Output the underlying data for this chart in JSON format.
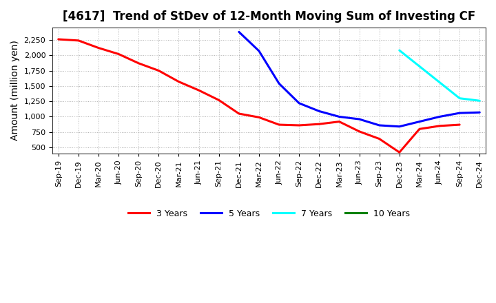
{
  "title": "[4617]  Trend of StDev of 12-Month Moving Sum of Investing CF",
  "ylabel": "Amount (million yen)",
  "background_color": "#ffffff",
  "plot_bg_color": "#ffffff",
  "grid_color": "#aaaaaa",
  "title_fontsize": 12,
  "axis_label_fontsize": 10,
  "tick_fontsize": 8,
  "x_tick_labels": [
    "Sep-19",
    "Dec-19",
    "Mar-20",
    "Jun-20",
    "Sep-20",
    "Dec-20",
    "Mar-21",
    "Jun-21",
    "Sep-21",
    "Dec-21",
    "Mar-22",
    "Jun-22",
    "Sep-22",
    "Dec-22",
    "Mar-23",
    "Jun-23",
    "Sep-23",
    "Dec-23",
    "Mar-24",
    "Jun-24",
    "Sep-24",
    "Dec-24"
  ],
  "series": [
    {
      "color": "#ff0000",
      "label": "3 Years",
      "x_indices": [
        0,
        1,
        2,
        3,
        4,
        5,
        6,
        7,
        8,
        9,
        10,
        11,
        12,
        13,
        14,
        15,
        16,
        17,
        18,
        19,
        20
      ],
      "values": [
        2260,
        2240,
        2120,
        2020,
        1870,
        1750,
        1570,
        1430,
        1270,
        1050,
        990,
        870,
        860,
        880,
        920,
        760,
        640,
        420,
        800,
        850,
        870
      ]
    },
    {
      "color": "#0000ff",
      "label": "5 Years",
      "x_indices": [
        9,
        10,
        11,
        12,
        13,
        14,
        15,
        16,
        17,
        18,
        19,
        20,
        21
      ],
      "values": [
        2380,
        2070,
        1540,
        1220,
        1090,
        1000,
        960,
        860,
        840,
        920,
        1000,
        1060,
        1070
      ]
    },
    {
      "color": "#00ffff",
      "label": "7 Years",
      "x_indices": [
        17,
        18,
        19,
        20,
        21
      ],
      "values": [
        2080,
        1820,
        1560,
        1300,
        1260
      ]
    },
    {
      "color": "#008000",
      "label": "10 Years",
      "x_indices": [],
      "values": []
    }
  ],
  "ylim": [
    400,
    2450
  ],
  "yticks": [
    500,
    750,
    1000,
    1250,
    1500,
    1750,
    2000,
    2250
  ],
  "legend_entries": [
    "3 Years",
    "5 Years",
    "7 Years",
    "10 Years"
  ],
  "legend_colors": [
    "#ff0000",
    "#0000ff",
    "#00ffff",
    "#008000"
  ]
}
